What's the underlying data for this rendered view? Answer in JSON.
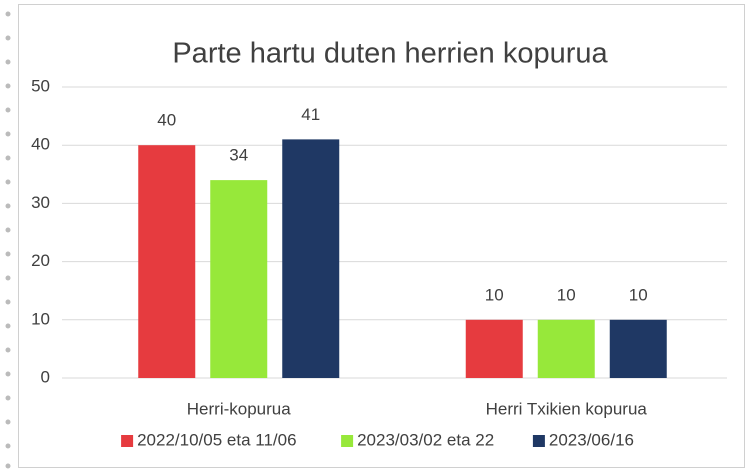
{
  "chart_data": {
    "type": "bar",
    "title": "Parte hartu duten herrien kopurua",
    "categories": [
      "Herri-kopurua",
      "Herri Txikien kopurua"
    ],
    "series": [
      {
        "name": "2022/10/05 eta 11/06",
        "color": "#e63b3f",
        "values": [
          40,
          10
        ]
      },
      {
        "name": "2023/03/02 eta 22",
        "color": "#97e83a",
        "values": [
          34,
          10
        ]
      },
      {
        "name": "2023/06/16",
        "color": "#1f3864",
        "values": [
          41,
          10
        ]
      }
    ],
    "ylim": [
      0,
      50
    ],
    "yticks": [
      0,
      10,
      20,
      30,
      40,
      50
    ],
    "grid": true,
    "legend": "bottom"
  }
}
